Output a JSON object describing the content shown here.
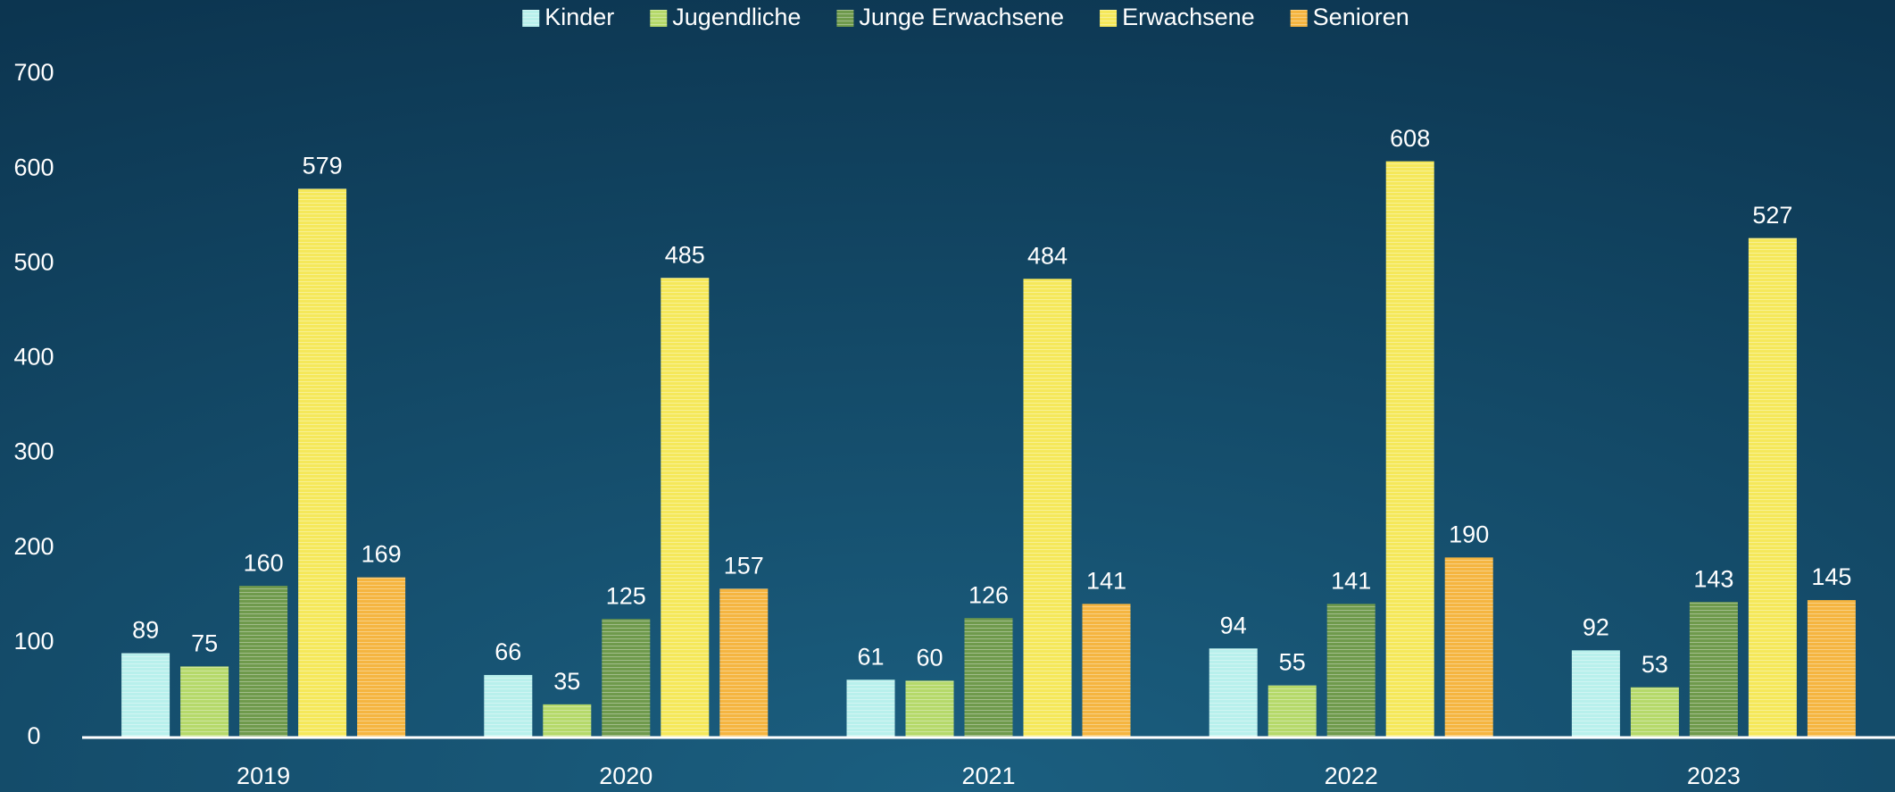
{
  "chart_data": {
    "type": "bar",
    "categories": [
      "2019",
      "2020",
      "2021",
      "2022",
      "2023"
    ],
    "series": [
      {
        "name": "Kinder",
        "color": "#b8f0ec",
        "values": [
          89,
          66,
          61,
          94,
          92
        ]
      },
      {
        "name": "Jugendliche",
        "color": "#b5d96a",
        "values": [
          75,
          35,
          60,
          55,
          53
        ]
      },
      {
        "name": "Junge Erwachsene",
        "color": "#6f9a4c",
        "values": [
          160,
          125,
          126,
          141,
          143
        ]
      },
      {
        "name": "Erwachsene",
        "color": "#f5e85a",
        "values": [
          579,
          485,
          484,
          608,
          527
        ]
      },
      {
        "name": "Senioren",
        "color": "#f5b540",
        "values": [
          169,
          157,
          141,
          190,
          145
        ]
      }
    ],
    "ylim": [
      0,
      700
    ],
    "yticks": [
      0,
      100,
      200,
      300,
      400,
      500,
      600,
      700
    ],
    "grid": false,
    "legend": "top"
  }
}
